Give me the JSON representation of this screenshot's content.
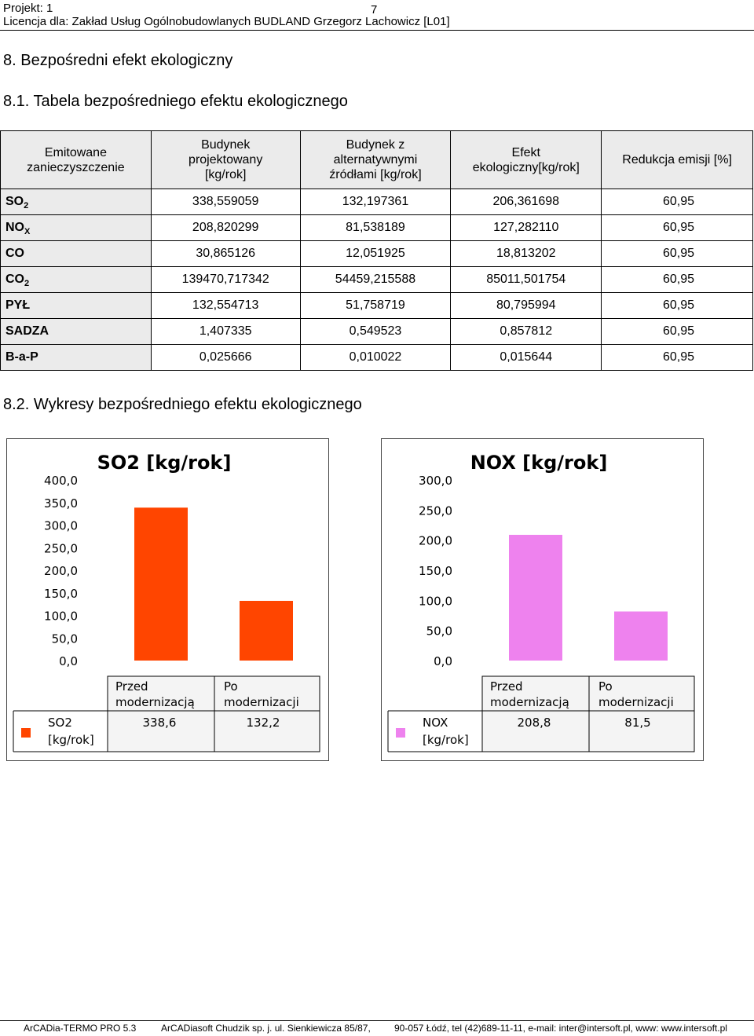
{
  "header": {
    "project": "Projekt: 1",
    "page_number": "7",
    "license": "Licencja dla: Zakład Usług Ogólnobudowlanych BUDLAND Grzegorz Lachowicz [L01]"
  },
  "section_title": "8. Bezpośredni efekt ekologiczny",
  "table_title": "8.1. Tabela bezpośredniego efektu ekologicznego",
  "charts_title": "8.2. Wykresy bezpośredniego efektu ekologicznego",
  "table": {
    "headers": {
      "col0": [
        "Emitowane",
        "zanieczyszczenie"
      ],
      "col1": [
        "Budynek",
        "projektowany",
        "[kg/rok]"
      ],
      "col2": [
        "Budynek z",
        "alternatywnymi",
        "źródłami [kg/rok]"
      ],
      "col3": [
        "Efekt",
        "ekologiczny[kg/rok]"
      ],
      "col4": [
        "Redukcja emisji [%]"
      ]
    },
    "rows": [
      {
        "name": "SO",
        "sub": "2",
        "c1": "338,559059",
        "c2": "132,197361",
        "c3": "206,361698",
        "c4": "60,95"
      },
      {
        "name": "NO",
        "sub": "X",
        "c1": "208,820299",
        "c2": "81,538189",
        "c3": "127,282110",
        "c4": "60,95"
      },
      {
        "name": "CO",
        "sub": "",
        "c1": "30,865126",
        "c2": "12,051925",
        "c3": "18,813202",
        "c4": "60,95"
      },
      {
        "name": "CO",
        "sub": "2",
        "c1": "139470,717342",
        "c2": "54459,215588",
        "c3": "85011,501754",
        "c4": "60,95"
      },
      {
        "name": "PYŁ",
        "sub": "",
        "c1": "132,554713",
        "c2": "51,758719",
        "c3": "80,795994",
        "c4": "60,95"
      },
      {
        "name": "SADZA",
        "sub": "",
        "c1": "1,407335",
        "c2": "0,549523",
        "c3": "0,857812",
        "c4": "60,95"
      },
      {
        "name": "B-a-P",
        "sub": "",
        "c1": "0,025666",
        "c2": "0,010022",
        "c3": "0,015644",
        "c4": "60,95"
      }
    ]
  },
  "chart_data": [
    {
      "type": "bar",
      "title": "SO2 [kg/rok]",
      "color": "#ff4500",
      "ylim": [
        0,
        400
      ],
      "yticks": [
        "400,0",
        "350,0",
        "300,0",
        "250,0",
        "200,0",
        "150,0",
        "100,0",
        "50,0",
        "0,0"
      ],
      "categories": [
        [
          "Przed",
          "modernizacją"
        ],
        [
          "Po",
          "modernizacji"
        ]
      ],
      "values": [
        338.6,
        132.2
      ],
      "value_labels": [
        "338,6",
        "132,2"
      ],
      "series_label": [
        "SO2",
        "[kg/rok]"
      ]
    },
    {
      "type": "bar",
      "title": "NOX [kg/rok]",
      "color": "#ee82ee",
      "ylim": [
        0,
        300
      ],
      "yticks": [
        "300,0",
        "250,0",
        "200,0",
        "150,0",
        "100,0",
        "50,0",
        "0,0"
      ],
      "categories": [
        [
          "Przed",
          "modernizacją"
        ],
        [
          "Po",
          "modernizacji"
        ]
      ],
      "values": [
        208.8,
        81.5
      ],
      "value_labels": [
        "208,8",
        "81,5"
      ],
      "series_label": [
        "NOX",
        "[kg/rok]"
      ]
    }
  ],
  "footer": {
    "program": "ArCADia-TERMO PRO 5.3",
    "company": "ArCADiasoft Chudzik sp. j. ul. Sienkiewicza 85/87,",
    "address": "90-057 Łódź, tel (42)689-11-11, e-mail: inter@intersoft.pl, www: www.intersoft.pl"
  }
}
